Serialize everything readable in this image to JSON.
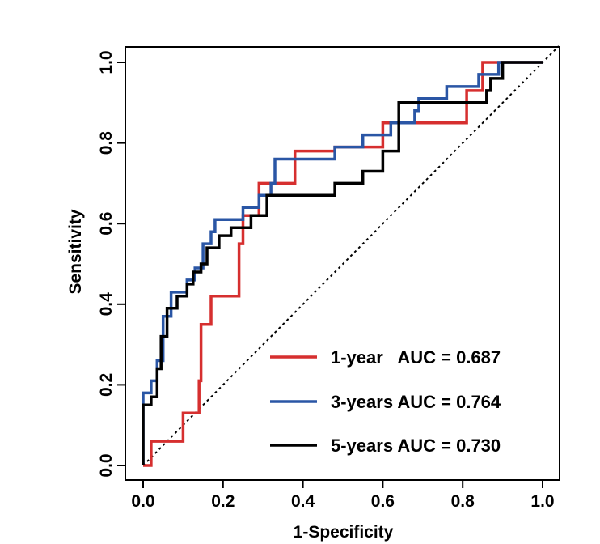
{
  "chart_data": {
    "type": "line",
    "xlabel": "1-Specificity",
    "ylabel": "Sensitivity",
    "xlim": [
      0,
      1
    ],
    "ylim": [
      0,
      1
    ],
    "xticks": [
      "0.0",
      "0.2",
      "0.4",
      "0.6",
      "0.8",
      "1.0"
    ],
    "yticks": [
      "0.0",
      "0.2",
      "0.4",
      "0.6",
      "0.8",
      "1.0"
    ],
    "diagonal": {
      "from": [
        0,
        0
      ],
      "to": [
        1,
        1
      ],
      "style": "dotted"
    },
    "legend_position": "bottom-right",
    "series": [
      {
        "name": "1-year   AUC = 0.687",
        "color": "#d62f2f",
        "points": [
          [
            0,
            0
          ],
          [
            0.02,
            0
          ],
          [
            0.02,
            0.06
          ],
          [
            0.1,
            0.06
          ],
          [
            0.1,
            0.13
          ],
          [
            0.14,
            0.13
          ],
          [
            0.14,
            0.21
          ],
          [
            0.145,
            0.21
          ],
          [
            0.145,
            0.35
          ],
          [
            0.17,
            0.35
          ],
          [
            0.17,
            0.42
          ],
          [
            0.24,
            0.42
          ],
          [
            0.24,
            0.55
          ],
          [
            0.25,
            0.55
          ],
          [
            0.25,
            0.62
          ],
          [
            0.29,
            0.62
          ],
          [
            0.29,
            0.7
          ],
          [
            0.38,
            0.7
          ],
          [
            0.38,
            0.78
          ],
          [
            0.48,
            0.78
          ],
          [
            0.48,
            0.79
          ],
          [
            0.6,
            0.79
          ],
          [
            0.6,
            0.85
          ],
          [
            0.81,
            0.85
          ],
          [
            0.81,
            0.93
          ],
          [
            0.85,
            0.93
          ],
          [
            0.85,
            1.0
          ],
          [
            1.0,
            1.0
          ]
        ]
      },
      {
        "name": "3-years AUC = 0.764",
        "color": "#2a56a5",
        "points": [
          [
            0,
            0
          ],
          [
            0,
            0.18
          ],
          [
            0.02,
            0.18
          ],
          [
            0.02,
            0.21
          ],
          [
            0.035,
            0.21
          ],
          [
            0.035,
            0.26
          ],
          [
            0.05,
            0.26
          ],
          [
            0.05,
            0.37
          ],
          [
            0.07,
            0.37
          ],
          [
            0.07,
            0.43
          ],
          [
            0.11,
            0.43
          ],
          [
            0.11,
            0.46
          ],
          [
            0.13,
            0.46
          ],
          [
            0.13,
            0.49
          ],
          [
            0.15,
            0.49
          ],
          [
            0.15,
            0.55
          ],
          [
            0.17,
            0.55
          ],
          [
            0.17,
            0.58
          ],
          [
            0.18,
            0.58
          ],
          [
            0.18,
            0.61
          ],
          [
            0.25,
            0.61
          ],
          [
            0.25,
            0.64
          ],
          [
            0.29,
            0.64
          ],
          [
            0.29,
            0.67
          ],
          [
            0.32,
            0.67
          ],
          [
            0.32,
            0.7
          ],
          [
            0.33,
            0.7
          ],
          [
            0.33,
            0.76
          ],
          [
            0.48,
            0.76
          ],
          [
            0.48,
            0.79
          ],
          [
            0.55,
            0.79
          ],
          [
            0.55,
            0.82
          ],
          [
            0.62,
            0.82
          ],
          [
            0.62,
            0.85
          ],
          [
            0.68,
            0.85
          ],
          [
            0.68,
            0.88
          ],
          [
            0.69,
            0.88
          ],
          [
            0.69,
            0.91
          ],
          [
            0.76,
            0.91
          ],
          [
            0.76,
            0.94
          ],
          [
            0.84,
            0.94
          ],
          [
            0.84,
            0.97
          ],
          [
            0.89,
            0.97
          ],
          [
            0.89,
            1.0
          ],
          [
            1.0,
            1.0
          ]
        ]
      },
      {
        "name": "5-years AUC = 0.730",
        "color": "#000000",
        "points": [
          [
            0,
            0
          ],
          [
            0,
            0.15
          ],
          [
            0.02,
            0.15
          ],
          [
            0.02,
            0.17
          ],
          [
            0.035,
            0.17
          ],
          [
            0.035,
            0.24
          ],
          [
            0.045,
            0.24
          ],
          [
            0.045,
            0.32
          ],
          [
            0.06,
            0.32
          ],
          [
            0.06,
            0.39
          ],
          [
            0.085,
            0.39
          ],
          [
            0.085,
            0.42
          ],
          [
            0.11,
            0.42
          ],
          [
            0.11,
            0.45
          ],
          [
            0.125,
            0.45
          ],
          [
            0.125,
            0.48
          ],
          [
            0.145,
            0.48
          ],
          [
            0.145,
            0.5
          ],
          [
            0.16,
            0.5
          ],
          [
            0.16,
            0.54
          ],
          [
            0.19,
            0.54
          ],
          [
            0.19,
            0.57
          ],
          [
            0.22,
            0.57
          ],
          [
            0.22,
            0.59
          ],
          [
            0.27,
            0.59
          ],
          [
            0.27,
            0.62
          ],
          [
            0.31,
            0.62
          ],
          [
            0.31,
            0.67
          ],
          [
            0.48,
            0.67
          ],
          [
            0.48,
            0.7
          ],
          [
            0.55,
            0.7
          ],
          [
            0.55,
            0.73
          ],
          [
            0.6,
            0.73
          ],
          [
            0.6,
            0.78
          ],
          [
            0.64,
            0.78
          ],
          [
            0.64,
            0.9
          ],
          [
            0.86,
            0.9
          ],
          [
            0.86,
            0.93
          ],
          [
            0.87,
            0.93
          ],
          [
            0.87,
            0.96
          ],
          [
            0.9,
            0.96
          ],
          [
            0.9,
            1.0
          ],
          [
            1.0,
            1.0
          ]
        ]
      }
    ]
  }
}
